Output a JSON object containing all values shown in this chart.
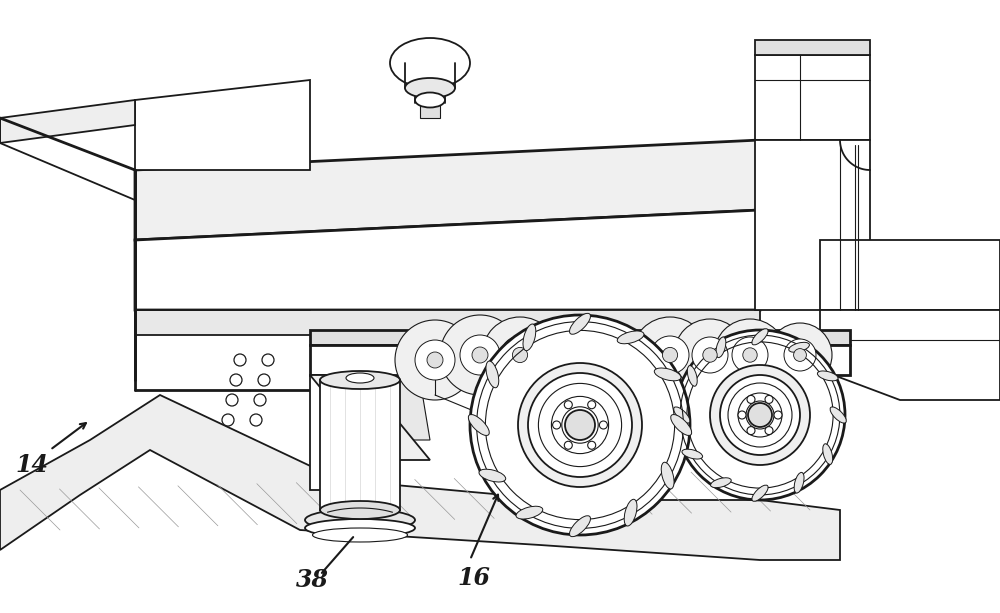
{
  "bg_color": "#ffffff",
  "line_color": "#1a1a1a",
  "label_14": "14",
  "label_16": "16",
  "label_38": "38",
  "figsize": [
    10.0,
    6.13
  ],
  "dpi": 100,
  "hatch_color": "#aaaaaa",
  "shade_color": "#d8d8d8"
}
